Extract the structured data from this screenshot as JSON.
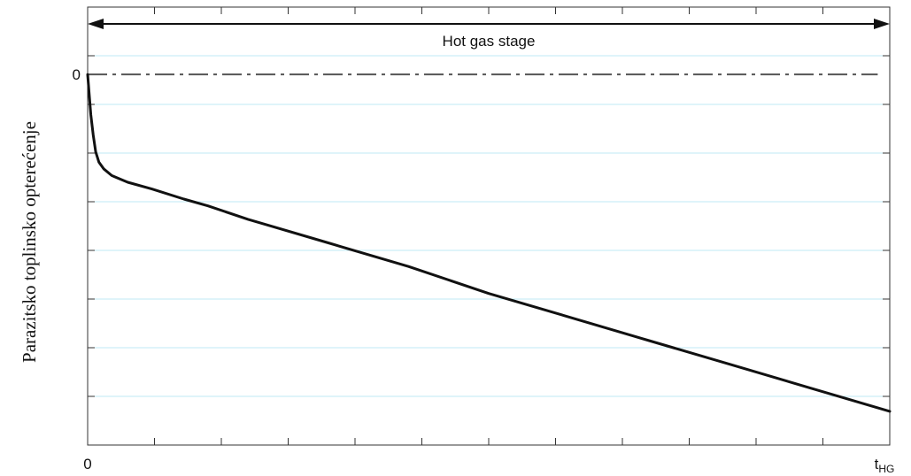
{
  "chart_data": {
    "type": "line",
    "title": "",
    "ylabel": "Parazitsko toplinsko opterećenje",
    "xlabel": "",
    "x_tick_labels": {
      "start": "0",
      "end_base": "t",
      "end_sub": "HG"
    },
    "y_tick_labels": {
      "zero": "0"
    },
    "xlim": [
      0,
      1
    ],
    "ylim": [
      -1.1,
      0.2
    ],
    "grid": true,
    "grid_color": "#bfe9f4",
    "line_color": "#111111",
    "reference_line": {
      "y": 0,
      "style": "dash-dot",
      "color": "#555555"
    },
    "span_annotation": {
      "label": "Hot gas stage",
      "x_from": 0,
      "x_to": 1,
      "y": 0.15
    },
    "series": [
      {
        "x": [
          0,
          0.002,
          0.004,
          0.007,
          0.01,
          0.014,
          0.02,
          0.03,
          0.05,
          0.08,
          0.12,
          0.15,
          0.2,
          0.3,
          0.4,
          0.5,
          0.6,
          0.7,
          0.8,
          0.9,
          1.0
        ],
        "y": [
          0,
          -0.06,
          -0.12,
          -0.18,
          -0.23,
          -0.26,
          -0.28,
          -0.3,
          -0.32,
          -0.34,
          -0.37,
          -0.39,
          -0.43,
          -0.5,
          -0.57,
          -0.65,
          -0.72,
          -0.79,
          -0.86,
          -0.93,
          -1.0
        ]
      }
    ]
  }
}
